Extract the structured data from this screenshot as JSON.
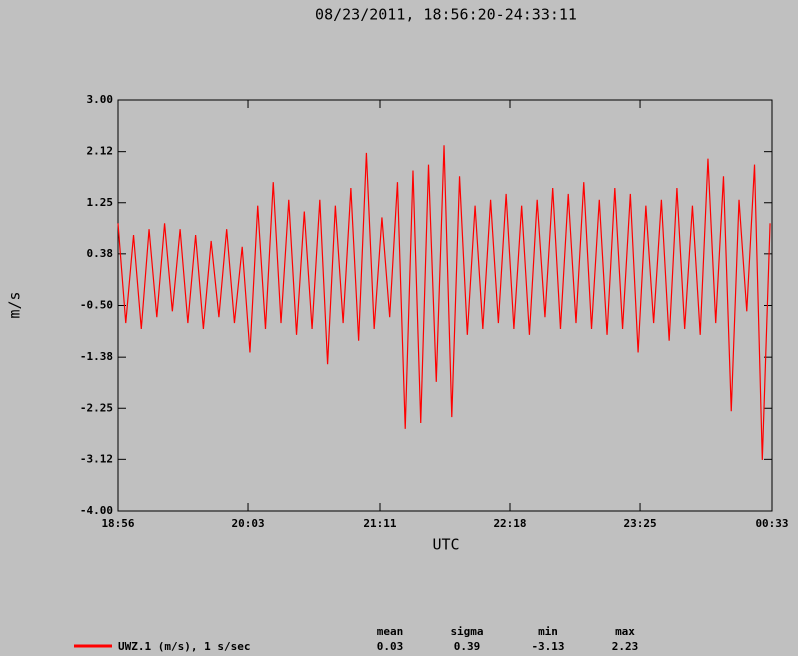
{
  "chart_data": {
    "type": "line",
    "title": "08/23/2011, 18:56:20-24:33:11",
    "x_label": "UTC",
    "y_label": "m/s",
    "x": [
      1136,
      1140,
      1144,
      1148,
      1152,
      1156,
      1160,
      1164,
      1168,
      1172,
      1176,
      1180,
      1184,
      1188,
      1192,
      1196,
      1200,
      1204,
      1208,
      1212,
      1216,
      1220,
      1224,
      1228,
      1232,
      1236,
      1240,
      1244,
      1248,
      1252,
      1256,
      1260,
      1264,
      1268,
      1272,
      1276,
      1280,
      1284,
      1288,
      1292,
      1296,
      1300,
      1304,
      1308,
      1312,
      1316,
      1320,
      1324,
      1328,
      1332,
      1336,
      1340,
      1344,
      1348,
      1352,
      1356,
      1360,
      1364,
      1368,
      1372,
      1376,
      1380,
      1384,
      1388,
      1392,
      1396,
      1400,
      1404,
      1408,
      1412,
      1416,
      1420,
      1424,
      1428,
      1432,
      1436,
      1440,
      1444,
      1448,
      1452,
      1456,
      1460,
      1464,
      1468,
      1472
    ],
    "series": [
      {
        "name": "UWZ.1 (m/s), 1 s/sec",
        "color": "#ff0000",
        "values": [
          0.9,
          -0.8,
          0.7,
          -0.9,
          0.8,
          -0.7,
          0.9,
          -0.6,
          0.8,
          -0.8,
          0.7,
          -0.9,
          0.6,
          -0.7,
          0.8,
          -0.8,
          0.5,
          -1.3,
          1.2,
          -0.9,
          1.6,
          -0.8,
          1.3,
          -1.0,
          1.1,
          -0.9,
          1.3,
          -1.5,
          1.2,
          -0.8,
          1.5,
          -1.1,
          2.1,
          -0.9,
          1.0,
          -0.7,
          1.6,
          -2.6,
          1.8,
          -2.5,
          1.9,
          -1.8,
          2.23,
          -2.4,
          1.7,
          -1.0,
          1.2,
          -0.9,
          1.3,
          -0.8,
          1.4,
          -0.9,
          1.2,
          -1.0,
          1.3,
          -0.7,
          1.5,
          -0.9,
          1.4,
          -0.8,
          1.6,
          -0.9,
          1.3,
          -1.0,
          1.5,
          -0.9,
          1.4,
          -1.3,
          1.2,
          -0.8,
          1.3,
          -1.1,
          1.5,
          -0.9,
          1.2,
          -1.0,
          2.0,
          -0.8,
          1.7,
          -2.3,
          1.3,
          -0.6,
          1.9,
          -3.13,
          0.9
        ]
      }
    ],
    "xlim": [
      1136,
      1473
    ],
    "xticks": [
      {
        "value": 1136,
        "label": "18:56"
      },
      {
        "value": 1203,
        "label": "20:03"
      },
      {
        "value": 1271,
        "label": "21:11"
      },
      {
        "value": 1338,
        "label": "22:18"
      },
      {
        "value": 1405,
        "label": "23:25"
      },
      {
        "value": 1473,
        "label": "00:33"
      }
    ],
    "ylim": [
      -4,
      3
    ],
    "yticks": [
      {
        "value": 3,
        "label": "3.00"
      },
      2.12,
      1.25,
      0.38,
      {
        "value": -0.5,
        "label": "-0.50"
      },
      -1.38,
      -2.25,
      -3.12,
      {
        "value": -4,
        "label": "-4.00"
      }
    ],
    "grid": false,
    "stats": {
      "labels": [
        "mean",
        "sigma",
        "min",
        "max"
      ],
      "values": [
        0.03,
        0.39,
        -3.13,
        2.23
      ]
    }
  }
}
